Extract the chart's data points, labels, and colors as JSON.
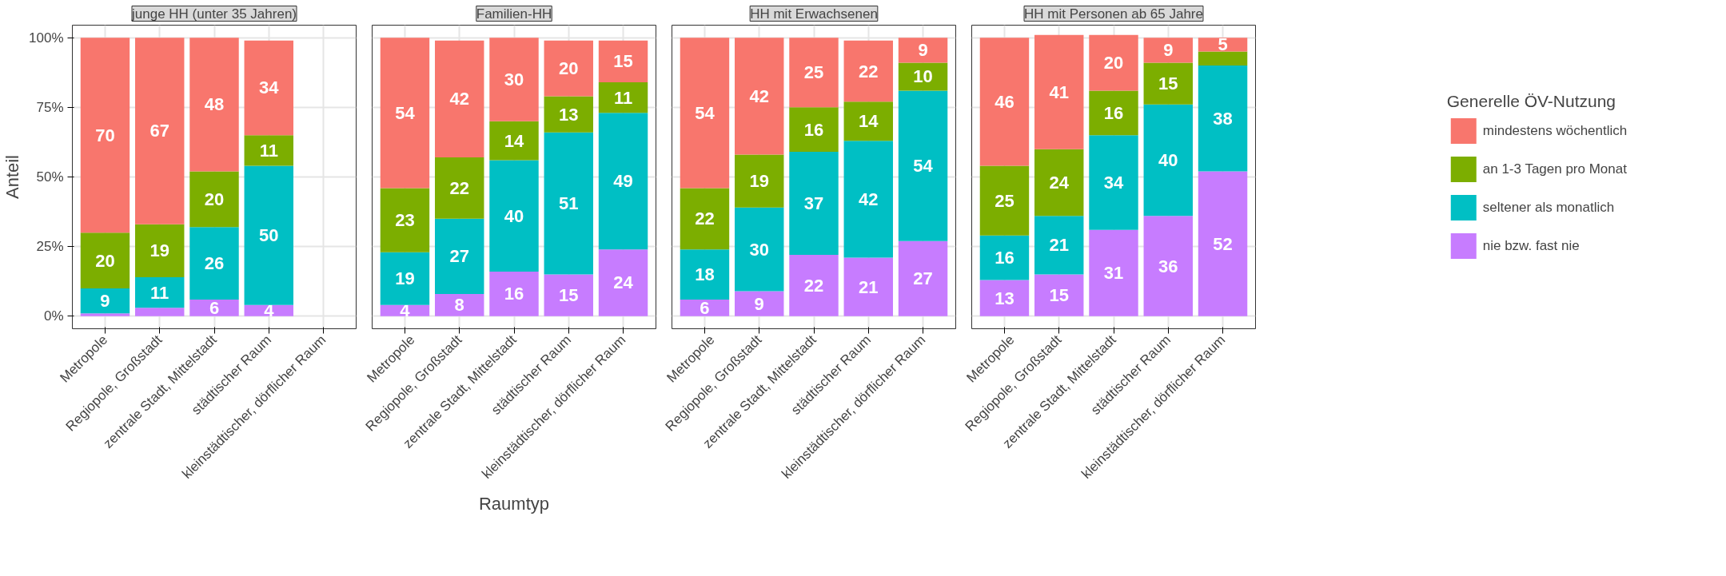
{
  "chart_data": [
    {
      "type": "bar",
      "stacked": true,
      "title": "junge HH (unter 35 Jahren)",
      "ylabel": "Anteil",
      "categories": [
        "Metropole",
        "Regiopole, Großstadt",
        "zentrale Stadt, Mittelstadt",
        "städtischer Raum",
        "kleinstädtischer, dörflicher Raum"
      ],
      "ylim": [
        -4.5,
        104.5
      ],
      "yticks": [
        {
          "value": 0,
          "label": "0%"
        },
        {
          "value": 25,
          "label": "25%"
        },
        {
          "value": 50,
          "label": "50%"
        },
        {
          "value": 75,
          "label": "75%"
        },
        {
          "value": 100,
          "label": "100%"
        }
      ],
      "grid": true,
      "series": [
        {
          "color": "#c77cff",
          "values": [
            1,
            3,
            6,
            4,
            null
          ],
          "value_labels": [
            null,
            null,
            "6",
            "4",
            null
          ]
        },
        {
          "color": "#00bfc4",
          "values": [
            9,
            11,
            26,
            50,
            null
          ],
          "value_labels": [
            "9",
            "11",
            "26",
            "50",
            null
          ]
        },
        {
          "color": "#7cae00",
          "values": [
            20,
            19,
            20,
            11,
            null
          ],
          "value_labels": [
            "20",
            "19",
            "20",
            "11",
            null
          ]
        },
        {
          "color": "#f8766d",
          "values": [
            70,
            67,
            48,
            34,
            null
          ],
          "value_labels": [
            "70",
            "67",
            "48",
            "34",
            null
          ]
        }
      ]
    },
    {
      "type": "bar",
      "stacked": true,
      "title": "Familien-HH",
      "xlabel": "Raumtyp",
      "tick_labels": "x",
      "categories": [
        "Metropole",
        "Regiopole, Großstadt",
        "zentrale Stadt, Mittelstadt",
        "städtischer Raum",
        "kleinstädtischer, dörflicher Raum"
      ],
      "ylim": [
        -4.5,
        104.5
      ],
      "yticks": [
        {
          "value": 0,
          "label": null
        },
        {
          "value": 25,
          "label": null
        },
        {
          "value": 50,
          "label": null
        },
        {
          "value": 75,
          "label": null
        },
        {
          "value": 100,
          "label": null
        }
      ],
      "grid": true,
      "series": [
        {
          "color": "#c77cff",
          "values": [
            4,
            8,
            16,
            15,
            24
          ],
          "value_labels": [
            "4",
            "8",
            "16",
            "15",
            "24"
          ]
        },
        {
          "color": "#00bfc4",
          "values": [
            19,
            27,
            40,
            51,
            49
          ],
          "value_labels": [
            "19",
            "27",
            "40",
            "51",
            "49"
          ]
        },
        {
          "color": "#7cae00",
          "values": [
            23,
            22,
            14,
            13,
            11
          ],
          "value_labels": [
            "23",
            "22",
            "14",
            "13",
            "11"
          ]
        },
        {
          "color": "#f8766d",
          "values": [
            54,
            42,
            30,
            20,
            15
          ],
          "value_labels": [
            "54",
            "42",
            "30",
            "20",
            "15"
          ]
        }
      ]
    },
    {
      "type": "bar",
      "stacked": true,
      "title": "HH mit Erwachsenen",
      "tick_labels": "x",
      "categories": [
        "Metropole",
        "Regiopole, Großstadt",
        "zentrale Stadt, Mittelstadt",
        "städtischer Raum",
        "kleinstädtischer, dörflicher Raum"
      ],
      "ylim": [
        -4.5,
        104.5
      ],
      "yticks": [
        {
          "value": 0,
          "label": null
        },
        {
          "value": 25,
          "label": null
        },
        {
          "value": 50,
          "label": null
        },
        {
          "value": 75,
          "label": null
        },
        {
          "value": 100,
          "label": null
        }
      ],
      "grid": true,
      "series": [
        {
          "color": "#c77cff",
          "values": [
            6,
            9,
            22,
            21,
            27
          ],
          "value_labels": [
            "6",
            "9",
            "22",
            "21",
            "27"
          ]
        },
        {
          "color": "#00bfc4",
          "values": [
            18,
            30,
            37,
            42,
            54
          ],
          "value_labels": [
            "18",
            "30",
            "37",
            "42",
            "54"
          ]
        },
        {
          "color": "#7cae00",
          "values": [
            22,
            19,
            16,
            14,
            10
          ],
          "value_labels": [
            "22",
            "19",
            "16",
            "14",
            "10"
          ]
        },
        {
          "color": "#f8766d",
          "values": [
            54,
            42,
            25,
            22,
            9
          ],
          "value_labels": [
            "54",
            "42",
            "25",
            "22",
            "9"
          ]
        }
      ]
    },
    {
      "type": "bar",
      "stacked": true,
      "title": "HH mit Personen ab 65 Jahre",
      "tick_labels": "x",
      "legend": "right",
      "legend_title": "Generelle ÖV-Nutzung",
      "categories": [
        "Metropole",
        "Regiopole, Großstadt",
        "zentrale Stadt, Mittelstadt",
        "städtischer Raum",
        "kleinstädtischer, dörflicher Raum"
      ],
      "ylim": [
        -4.5,
        104.5
      ],
      "yticks": [
        {
          "value": 0,
          "label": null
        },
        {
          "value": 25,
          "label": null
        },
        {
          "value": 50,
          "label": null
        },
        {
          "value": 75,
          "label": null
        },
        {
          "value": 100,
          "label": null
        }
      ],
      "grid": true,
      "series": [
        {
          "name": "nie bzw. fast nie",
          "color": "#c77cff",
          "values": [
            13,
            15,
            31,
            36,
            52
          ],
          "value_labels": [
            "13",
            "15",
            "31",
            "36",
            "52"
          ]
        },
        {
          "name": "seltener als monatlich",
          "color": "#00bfc4",
          "values": [
            16,
            21,
            34,
            40,
            38
          ],
          "value_labels": [
            "16",
            "21",
            "34",
            "40",
            "38"
          ]
        },
        {
          "name": "an 1-3 Tagen pro Monat",
          "color": "#7cae00",
          "values": [
            25,
            24,
            16,
            15,
            5
          ],
          "value_labels": [
            "25",
            "24",
            "16",
            "15",
            null
          ]
        },
        {
          "name": "mindestens wöchentlich",
          "color": "#f8766d",
          "values": [
            46,
            41,
            20,
            9,
            5
          ],
          "value_labels": [
            "46",
            "41",
            "20",
            "9",
            "5"
          ]
        }
      ]
    }
  ]
}
